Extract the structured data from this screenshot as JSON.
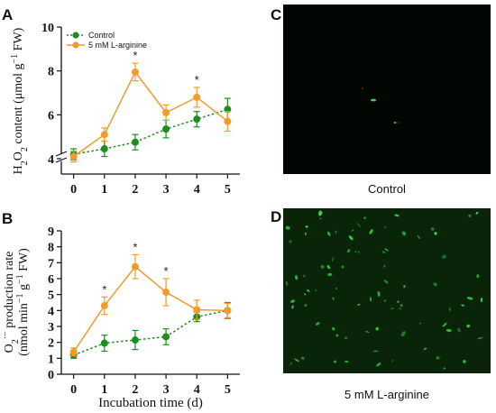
{
  "chart_data": [
    {
      "panel": "A",
      "type": "line",
      "x": [
        0,
        1,
        2,
        3,
        4,
        5
      ],
      "xlim": [
        -0.4,
        5.4
      ],
      "ylim": [
        3.3,
        10
      ],
      "yticks": [
        4,
        6,
        8,
        10
      ],
      "ylabel": "H₂O₂ content (μmol g⁻¹ FW)",
      "xlabel": "",
      "axis_break": true,
      "legend_position": "top-left",
      "series": [
        {
          "name": "Control",
          "color": "#1e8c1e",
          "dashed": true,
          "values": [
            4.2,
            4.45,
            4.75,
            5.35,
            5.8,
            6.25
          ],
          "errors": [
            0.25,
            0.35,
            0.35,
            0.4,
            0.35,
            0.5
          ]
        },
        {
          "name": "5 mM L-arginine",
          "color": "#f39a2c",
          "dashed": false,
          "values": [
            4.1,
            5.1,
            7.95,
            6.1,
            6.8,
            5.7
          ],
          "errors": [
            0.25,
            0.3,
            0.4,
            0.35,
            0.45,
            0.45
          ]
        }
      ],
      "annotations": [
        {
          "x": 2,
          "text": "*"
        },
        {
          "x": 4,
          "text": "*"
        }
      ]
    },
    {
      "panel": "B",
      "type": "line",
      "x": [
        0,
        1,
        2,
        3,
        4,
        5
      ],
      "xlim": [
        -0.4,
        5.4
      ],
      "ylim": [
        0,
        9
      ],
      "yticks": [
        0,
        1,
        2,
        3,
        4,
        5,
        6,
        7,
        8,
        9
      ],
      "ylabel": "O₂⁻̇ production rate (nmol min⁻¹ g⁻¹ FW)",
      "xlabel": "Incubation time (d)",
      "series": [
        {
          "name": "Control",
          "color": "#1e8c1e",
          "dashed": true,
          "values": [
            1.2,
            1.95,
            2.15,
            2.35,
            3.6,
            4.0
          ],
          "errors": [
            0.2,
            0.5,
            0.6,
            0.5,
            0.3,
            0.5
          ]
        },
        {
          "name": "5 mM L-arginine",
          "color": "#f39a2c",
          "dashed": false,
          "values": [
            1.4,
            4.3,
            6.75,
            5.15,
            4.05,
            4.0
          ],
          "errors": [
            0.25,
            0.55,
            0.75,
            0.85,
            0.6,
            0.45
          ]
        }
      ],
      "annotations": [
        {
          "x": 1,
          "text": "*"
        },
        {
          "x": 2,
          "text": "*"
        },
        {
          "x": 3,
          "text": "*"
        }
      ]
    }
  ],
  "micrographs": [
    {
      "panel": "C",
      "label": "Control",
      "background": "#020602"
    },
    {
      "panel": "D",
      "label": "5 mM L-arginine",
      "background": "#0a240a"
    }
  ],
  "axis_title_parts": {
    "A": {
      "h": "H",
      "two1": "2",
      "o": "O",
      "two2": "2",
      "rest": " content (μmol g",
      "exp": "−1",
      "fw": " FW)"
    },
    "B": {
      "o": "O",
      "two": "2",
      "dot": "·−",
      "rest": " production rate",
      "line2a": "(nmol min",
      "exp1": "−1",
      "mid": " g",
      "exp2": "−1",
      "fw": " FW)"
    }
  }
}
